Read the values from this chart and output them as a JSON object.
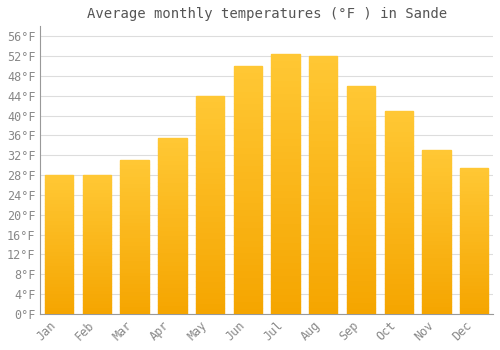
{
  "title": "Average monthly temperatures (°F ) in Sande",
  "months": [
    "Jan",
    "Feb",
    "Mar",
    "Apr",
    "May",
    "Jun",
    "Jul",
    "Aug",
    "Sep",
    "Oct",
    "Nov",
    "Dec"
  ],
  "values": [
    28.0,
    28.0,
    31.0,
    35.5,
    44.0,
    50.0,
    52.5,
    52.0,
    46.0,
    41.0,
    33.0,
    29.5
  ],
  "bar_color_top": "#FFC835",
  "bar_color_bottom": "#F5A500",
  "background_color": "#FFFFFF",
  "grid_color": "#DDDDDD",
  "title_color": "#555555",
  "tick_label_color": "#888888",
  "ylim": [
    0,
    58
  ],
  "ytick_step": 4,
  "title_fontsize": 10,
  "tick_fontsize": 8.5
}
